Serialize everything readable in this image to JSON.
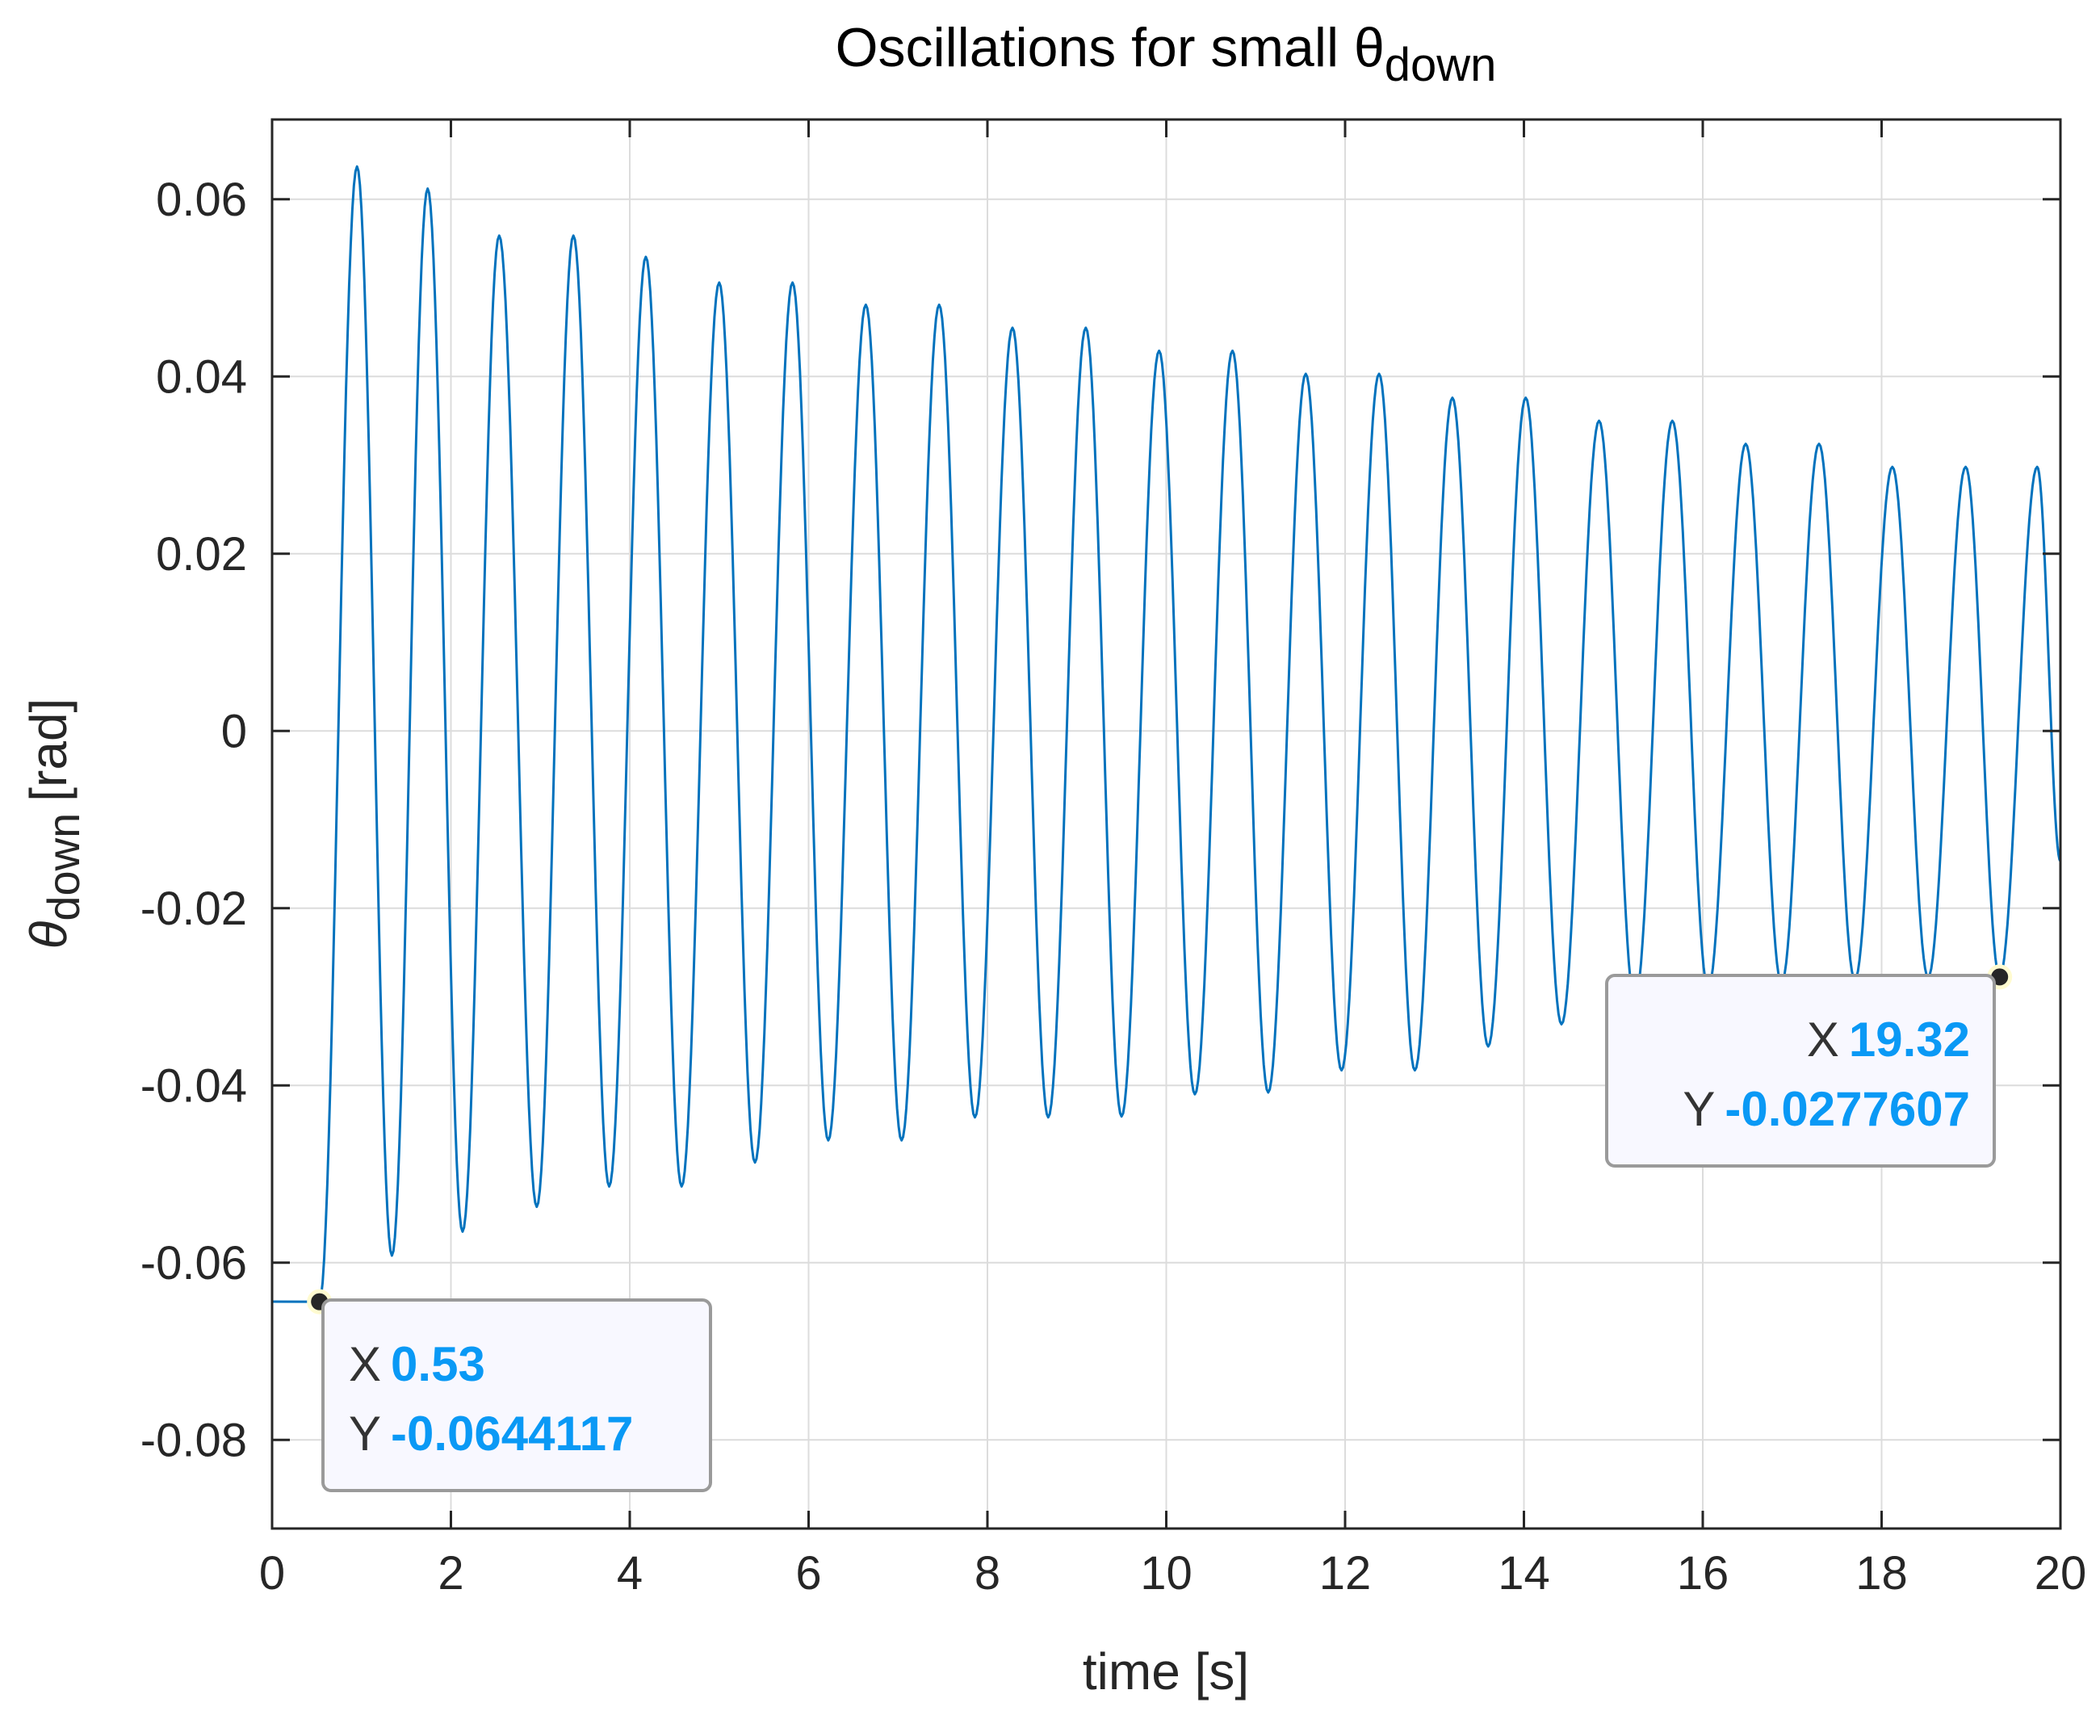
{
  "chart_data": {
    "type": "line",
    "title": "Oscillations for small θ",
    "title_subscript": "down",
    "xlabel": "time [s]",
    "ylabel_symbol": "θ",
    "ylabel_subscript": "down",
    "ylabel_unit": "[rad]",
    "xlim": [
      0,
      20
    ],
    "ylim": [
      -0.09,
      0.069
    ],
    "xticks": [
      0,
      2,
      4,
      6,
      8,
      10,
      12,
      14,
      16,
      18,
      20
    ],
    "xtick_labels": [
      "0",
      "2",
      "4",
      "6",
      "8",
      "10",
      "12",
      "14",
      "16",
      "18",
      "20"
    ],
    "yticks": [
      0.06,
      0.04,
      0.02,
      0,
      -0.02,
      -0.04,
      -0.06,
      -0.08
    ],
    "ytick_labels": [
      "0.06",
      "0.04",
      "0.02",
      "0",
      "-0.02",
      "-0.04",
      "-0.06",
      "-0.08"
    ],
    "grid": true,
    "line_color": "#0072bd",
    "series": [
      {
        "x": [
          0,
          0.53,
          0.95,
          1.34,
          1.74,
          2.13,
          2.54,
          2.96,
          3.37,
          3.77,
          4.18,
          4.58,
          5.0,
          5.4,
          5.82,
          6.22,
          6.64,
          7.04,
          7.46,
          7.86,
          8.28,
          8.68,
          9.1,
          9.5,
          9.92,
          10.32,
          10.74,
          11.14,
          11.56,
          11.96,
          12.38,
          12.78,
          13.2,
          13.6,
          14.02,
          14.42,
          14.84,
          15.24,
          15.66,
          16.06,
          16.48,
          16.88,
          17.3,
          17.7,
          18.12,
          18.52,
          18.94,
          19.32,
          19.74,
          20.0
        ],
        "y": [
          -0.0644,
          -0.0644117,
          0.0637,
          -0.0592,
          0.0612,
          -0.0565,
          0.0559,
          -0.0537,
          0.0559,
          -0.0514,
          0.0535,
          -0.0514,
          0.0506,
          -0.0487,
          0.0506,
          -0.0462,
          0.0481,
          -0.0462,
          0.0481,
          -0.0436,
          0.0455,
          -0.0436,
          0.0455,
          -0.0435,
          0.0429,
          -0.041,
          0.0429,
          -0.0408,
          0.0403,
          -0.0383,
          0.0403,
          -0.0383,
          0.0376,
          -0.0356,
          0.0376,
          -0.0331,
          0.035,
          -0.0305,
          0.035,
          -0.0291,
          0.0324,
          -0.0285,
          0.0324,
          -0.0281,
          0.0298,
          -0.0278,
          0.0298,
          -0.0277607,
          0.0298,
          -0.0147
        ]
      }
    ],
    "datatips": [
      {
        "x_key": "X",
        "x_value": "0.53",
        "y_key": "Y",
        "y_value": "-0.0644117",
        "px": 0.53,
        "py": -0.0644117
      },
      {
        "x_key": "X",
        "x_value": "19.32",
        "y_key": "Y",
        "y_value": "-0.0277607",
        "px": 19.32,
        "py": -0.0277607
      }
    ]
  }
}
